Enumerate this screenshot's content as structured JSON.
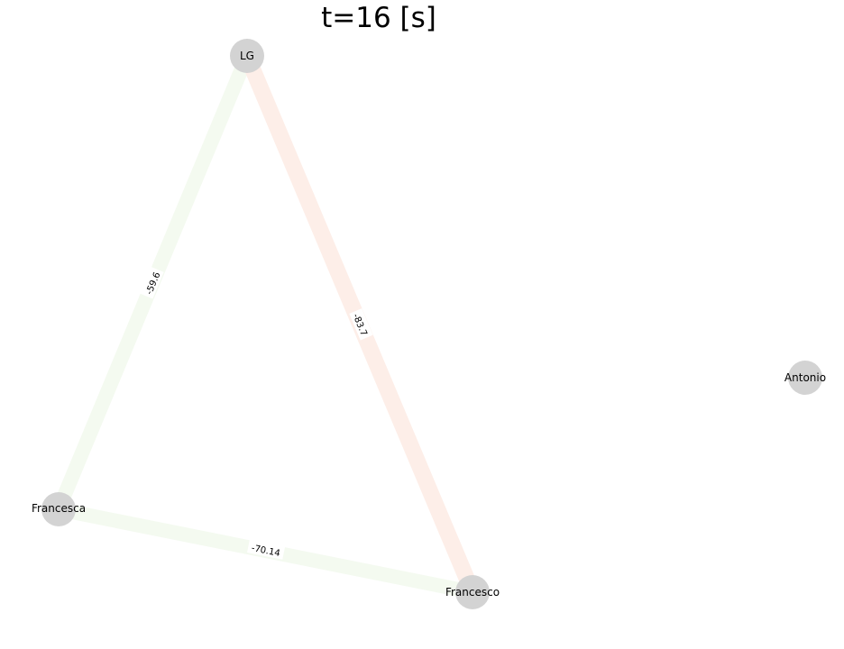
{
  "title": "t=16 [s]",
  "nodes": {
    "lg": {
      "label": "LG"
    },
    "francesca": {
      "label": "Francesca"
    },
    "francesco": {
      "label": "Francesco"
    },
    "antonio": {
      "label": "Antonio"
    }
  },
  "edges": {
    "lg_francesca": {
      "label": "-59.6",
      "color": "#f4faf0"
    },
    "lg_francesco": {
      "label": "-83.7",
      "color": "#fdeee8"
    },
    "francesca_francesco": {
      "label": "-70.14",
      "color": "#f4faf0"
    }
  },
  "node_color": "#d3d3d3"
}
